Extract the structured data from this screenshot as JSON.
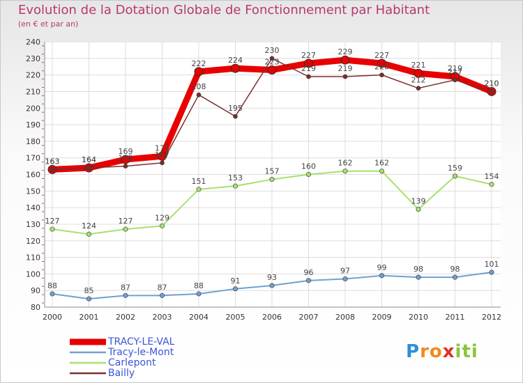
{
  "title": "Evolution de la Dotation Globale de Fonctionnement par Habitant",
  "subtitle": "(en € et par an)",
  "logo": {
    "letters": [
      "P",
      "r",
      "o",
      "x",
      "i",
      "t",
      "i"
    ],
    "colors": [
      "#2f8fd8",
      "#f08a1c",
      "#f08a1c",
      "#e03020",
      "#8ac43c",
      "#8ac43c",
      "#8ac43c"
    ]
  },
  "chart_data": {
    "type": "line",
    "title": "Evolution de la Dotation Globale de Fonctionnement par Habitant",
    "subtitle": "(en € et par an)",
    "x": [
      "2000",
      "2001",
      "2002",
      "2003",
      "2004",
      "2005",
      "2006",
      "2007",
      "2008",
      "2009",
      "2010",
      "2011",
      "2012"
    ],
    "ylim": [
      80,
      240
    ],
    "yticks": [
      80,
      90,
      100,
      110,
      120,
      130,
      140,
      150,
      160,
      170,
      180,
      190,
      200,
      210,
      220,
      230,
      240
    ],
    "grid": true,
    "legend_position": "bottom-left",
    "series": [
      {
        "name": "TRACY-LE-VAL",
        "color": "#e80000",
        "values": [
          163,
          164,
          169,
          171,
          222,
          224,
          223,
          227,
          229,
          227,
          221,
          219,
          210
        ]
      },
      {
        "name": "Tracy-le-Mont",
        "color": "#6fa0d0",
        "values": [
          88,
          85,
          87,
          87,
          88,
          91,
          93,
          96,
          97,
          99,
          98,
          98,
          101
        ]
      },
      {
        "name": "Carlepont",
        "color": "#a8e070",
        "values": [
          127,
          124,
          127,
          129,
          151,
          153,
          157,
          160,
          162,
          162,
          139,
          159,
          154
        ]
      },
      {
        "name": "Bailly",
        "color": "#7a2e2e",
        "values": [
          163,
          164,
          165,
          167,
          208,
          195,
          230,
          219,
          219,
          220,
          212,
          217,
          210
        ]
      }
    ]
  }
}
